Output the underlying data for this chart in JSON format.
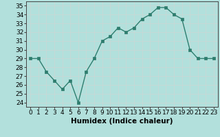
{
  "x": [
    0,
    1,
    2,
    3,
    4,
    5,
    6,
    7,
    8,
    9,
    10,
    11,
    12,
    13,
    14,
    15,
    16,
    17,
    18,
    19,
    20,
    21,
    22,
    23
  ],
  "y": [
    29.0,
    29.0,
    27.5,
    26.5,
    25.5,
    26.5,
    24.0,
    27.5,
    29.0,
    31.0,
    31.5,
    32.5,
    32.0,
    32.5,
    33.5,
    34.0,
    34.8,
    34.8,
    34.0,
    33.5,
    30.0,
    29.0,
    29.0,
    29.0
  ],
  "xlabel": "Humidex (Indice chaleur)",
  "ylim_min": 23.5,
  "ylim_max": 35.5,
  "xlim_min": -0.5,
  "xlim_max": 23.5,
  "yticks": [
    24,
    25,
    26,
    27,
    28,
    29,
    30,
    31,
    32,
    33,
    34,
    35
  ],
  "xticks": [
    0,
    1,
    2,
    3,
    4,
    5,
    6,
    7,
    8,
    9,
    10,
    11,
    12,
    13,
    14,
    15,
    16,
    17,
    18,
    19,
    20,
    21,
    22,
    23
  ],
  "line_color": "#2e7d6e",
  "marker_color": "#2e7d6e",
  "bg_color": "#b2e0dc",
  "grid_color": "#c8d8d6",
  "tick_label_fontsize": 6.5,
  "xlabel_fontsize": 7.5,
  "line_width": 1.0,
  "marker_size": 2.5
}
